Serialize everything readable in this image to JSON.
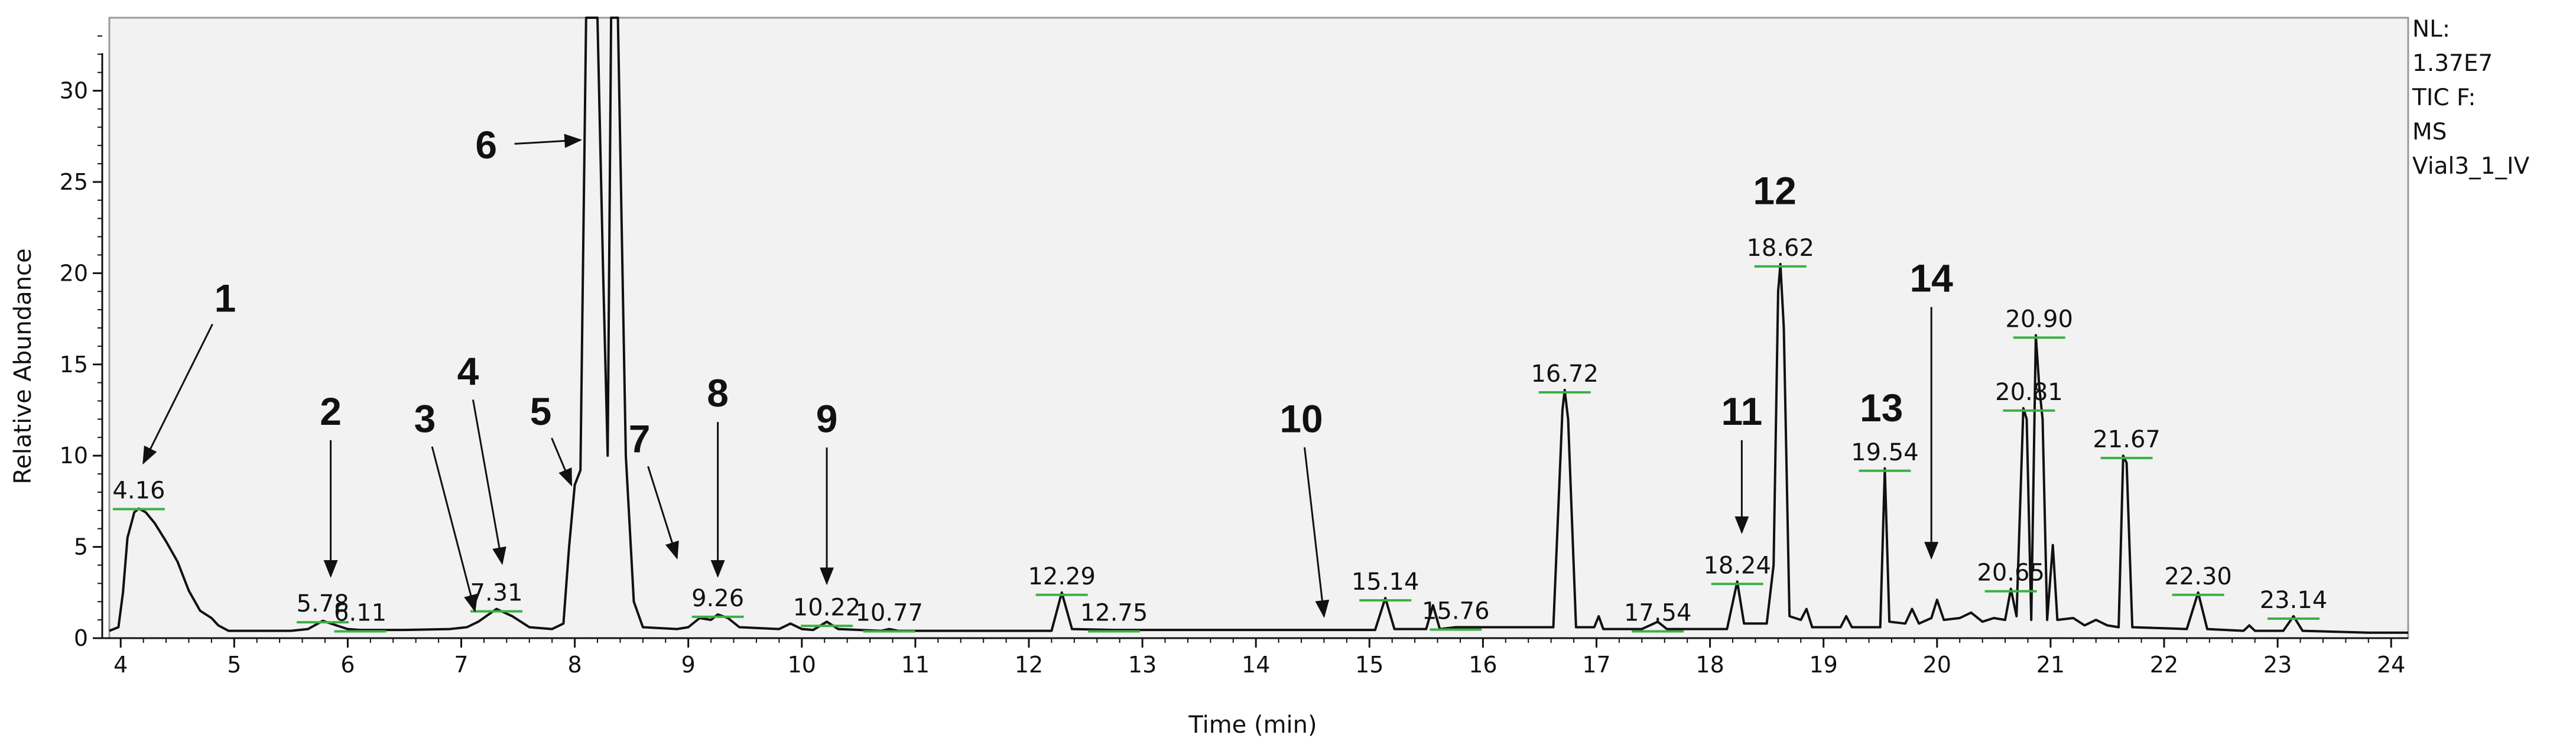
{
  "chart_data": {
    "type": "line",
    "xlabel": "Time (min)",
    "ylabel": "Relative Abundance",
    "xlim": [
      3.9,
      24.15
    ],
    "ylim": [
      0,
      34
    ],
    "x_ticks": [
      4,
      5,
      6,
      7,
      8,
      9,
      10,
      11,
      12,
      13,
      14,
      15,
      16,
      17,
      18,
      19,
      20,
      21,
      22,
      23,
      24
    ],
    "y_ticks": [
      0,
      5,
      10,
      15,
      20,
      25,
      30
    ],
    "info": [
      "NL:",
      "1.37E7",
      "TIC F:",
      "MS",
      "Vial3_1_IV"
    ],
    "peak_labels": [
      {
        "text": "4.16",
        "x": 4.16,
        "y": 7.2
      },
      {
        "text": "5.78",
        "x": 5.78,
        "y": 1.0
      },
      {
        "text": "6.11",
        "x": 6.11,
        "y": 0.5
      },
      {
        "text": "7.31",
        "x": 7.31,
        "y": 1.6
      },
      {
        "text": "9.26",
        "x": 9.26,
        "y": 1.3
      },
      {
        "text": "10.22",
        "x": 10.22,
        "y": 0.8
      },
      {
        "text": "10.77",
        "x": 10.77,
        "y": 0.5
      },
      {
        "text": "12.29",
        "x": 12.29,
        "y": 2.5
      },
      {
        "text": "12.75",
        "x": 12.75,
        "y": 0.5
      },
      {
        "text": "15.14",
        "x": 15.14,
        "y": 2.2
      },
      {
        "text": "15.76",
        "x": 15.76,
        "y": 0.6
      },
      {
        "text": "16.72",
        "x": 16.72,
        "y": 13.6
      },
      {
        "text": "17.54",
        "x": 17.54,
        "y": 0.5
      },
      {
        "text": "18.24",
        "x": 18.24,
        "y": 3.1
      },
      {
        "text": "18.62",
        "x": 18.62,
        "y": 20.5
      },
      {
        "text": "19.54",
        "x": 19.54,
        "y": 9.3
      },
      {
        "text": "20.65",
        "x": 20.65,
        "y": 2.7
      },
      {
        "text": "20.81",
        "x": 20.81,
        "y": 12.6
      },
      {
        "text": "20.90",
        "x": 20.9,
        "y": 16.6
      },
      {
        "text": "21.67",
        "x": 21.67,
        "y": 10.0
      },
      {
        "text": "22.30",
        "x": 22.3,
        "y": 2.5
      },
      {
        "text": "23.14",
        "x": 23.14,
        "y": 1.2
      }
    ],
    "annotations": [
      {
        "text": "1",
        "label_x": 4.92,
        "label_y": 18.6,
        "target_x": 4.2,
        "target_y": 9.6
      },
      {
        "text": "2",
        "label_x": 5.85,
        "label_y": 12.4,
        "target_x": 5.85,
        "target_y": 3.4
      },
      {
        "text": "3",
        "label_x": 6.68,
        "label_y": 12.0,
        "target_x": 7.12,
        "target_y": 1.5
      },
      {
        "text": "4",
        "label_x": 7.06,
        "label_y": 14.6,
        "target_x": 7.36,
        "target_y": 4.1
      },
      {
        "text": "5",
        "label_x": 7.7,
        "label_y": 12.4,
        "target_x": 7.97,
        "target_y": 8.4
      },
      {
        "text": "6",
        "label_x": 7.22,
        "label_y": 27.0,
        "target_x": 8.05,
        "target_y": 27.3
      },
      {
        "text": "7",
        "label_x": 8.57,
        "label_y": 10.9,
        "target_x": 8.9,
        "target_y": 4.4
      },
      {
        "text": "8",
        "label_x": 9.26,
        "label_y": 13.4,
        "target_x": 9.26,
        "target_y": 3.4
      },
      {
        "text": "9",
        "label_x": 10.22,
        "label_y": 12.0,
        "target_x": 10.22,
        "target_y": 3.0
      },
      {
        "text": "10",
        "label_x": 14.4,
        "label_y": 12.0,
        "target_x": 14.6,
        "target_y": 1.2
      },
      {
        "text": "11",
        "label_x": 18.28,
        "label_y": 12.4,
        "target_x": 18.28,
        "target_y": 5.8
      },
      {
        "text": "12",
        "label_x": 18.57,
        "label_y": 24.5,
        "target_x": null,
        "target_y": null
      },
      {
        "text": "13",
        "label_x": 19.51,
        "label_y": 12.6,
        "target_x": null,
        "target_y": null
      },
      {
        "text": "14",
        "label_x": 19.95,
        "label_y": 19.7,
        "target_x": 19.95,
        "target_y": 4.4
      }
    ],
    "series": [
      {
        "values": [
          [
            3.9,
            0.4
          ],
          [
            3.98,
            0.6
          ],
          [
            4.02,
            2.5
          ],
          [
            4.06,
            5.5
          ],
          [
            4.12,
            6.9
          ],
          [
            4.16,
            7.1
          ],
          [
            4.22,
            6.9
          ],
          [
            4.3,
            6.3
          ],
          [
            4.4,
            5.3
          ],
          [
            4.5,
            4.2
          ],
          [
            4.6,
            2.6
          ],
          [
            4.7,
            1.5
          ],
          [
            4.8,
            1.1
          ],
          [
            4.86,
            0.7
          ],
          [
            4.95,
            0.4
          ],
          [
            5.5,
            0.4
          ],
          [
            5.65,
            0.5
          ],
          [
            5.78,
            0.95
          ],
          [
            5.9,
            0.7
          ],
          [
            6.0,
            0.5
          ],
          [
            6.11,
            0.45
          ],
          [
            6.5,
            0.45
          ],
          [
            6.9,
            0.5
          ],
          [
            7.05,
            0.6
          ],
          [
            7.15,
            0.9
          ],
          [
            7.31,
            1.6
          ],
          [
            7.45,
            1.2
          ],
          [
            7.6,
            0.6
          ],
          [
            7.8,
            0.5
          ],
          [
            7.9,
            0.8
          ],
          [
            7.95,
            5.0
          ],
          [
            8.0,
            8.4
          ],
          [
            8.05,
            9.2
          ],
          [
            8.1,
            34.0
          ],
          [
            8.15,
            34.0
          ],
          [
            8.2,
            34.0
          ],
          [
            8.25,
            20.0
          ],
          [
            8.29,
            10.0
          ],
          [
            8.32,
            34.0
          ],
          [
            8.38,
            34.0
          ],
          [
            8.45,
            10.0
          ],
          [
            8.52,
            2.0
          ],
          [
            8.6,
            0.6
          ],
          [
            8.9,
            0.5
          ],
          [
            9.0,
            0.6
          ],
          [
            9.1,
            1.1
          ],
          [
            9.2,
            1.0
          ],
          [
            9.26,
            1.3
          ],
          [
            9.35,
            1.1
          ],
          [
            9.45,
            0.6
          ],
          [
            9.8,
            0.5
          ],
          [
            9.9,
            0.8
          ],
          [
            10.0,
            0.5
          ],
          [
            10.1,
            0.45
          ],
          [
            10.22,
            0.9
          ],
          [
            10.32,
            0.5
          ],
          [
            10.7,
            0.4
          ],
          [
            10.77,
            0.5
          ],
          [
            10.85,
            0.4
          ],
          [
            12.2,
            0.4
          ],
          [
            12.29,
            2.5
          ],
          [
            12.38,
            0.5
          ],
          [
            12.75,
            0.45
          ],
          [
            15.05,
            0.45
          ],
          [
            15.14,
            2.2
          ],
          [
            15.22,
            0.5
          ],
          [
            15.5,
            0.5
          ],
          [
            15.56,
            1.8
          ],
          [
            15.62,
            0.5
          ],
          [
            15.76,
            0.6
          ],
          [
            16.62,
            0.6
          ],
          [
            16.7,
            12.5
          ],
          [
            16.72,
            13.6
          ],
          [
            16.75,
            12.0
          ],
          [
            16.82,
            0.6
          ],
          [
            16.98,
            0.6
          ],
          [
            17.02,
            1.2
          ],
          [
            17.06,
            0.5
          ],
          [
            17.4,
            0.5
          ],
          [
            17.54,
            0.9
          ],
          [
            17.62,
            0.5
          ],
          [
            18.15,
            0.5
          ],
          [
            18.24,
            3.1
          ],
          [
            18.3,
            0.8
          ],
          [
            18.5,
            0.8
          ],
          [
            18.56,
            4.0
          ],
          [
            18.6,
            19.0
          ],
          [
            18.62,
            20.5
          ],
          [
            18.65,
            17.0
          ],
          [
            18.7,
            1.2
          ],
          [
            18.8,
            1.0
          ],
          [
            18.85,
            1.6
          ],
          [
            18.9,
            0.6
          ],
          [
            19.15,
            0.6
          ],
          [
            19.2,
            1.2
          ],
          [
            19.25,
            0.6
          ],
          [
            19.5,
            0.6
          ],
          [
            19.54,
            9.3
          ],
          [
            19.58,
            0.9
          ],
          [
            19.72,
            0.8
          ],
          [
            19.78,
            1.6
          ],
          [
            19.84,
            0.8
          ],
          [
            19.95,
            1.1
          ],
          [
            20.0,
            2.1
          ],
          [
            20.06,
            1.0
          ],
          [
            20.2,
            1.1
          ],
          [
            20.3,
            1.4
          ],
          [
            20.4,
            0.9
          ],
          [
            20.5,
            1.1
          ],
          [
            20.6,
            1.0
          ],
          [
            20.65,
            2.7
          ],
          [
            20.7,
            1.2
          ],
          [
            20.76,
            12.6
          ],
          [
            20.79,
            12.0
          ],
          [
            20.83,
            1.0
          ],
          [
            20.87,
            16.6
          ],
          [
            20.9,
            13.8
          ],
          [
            20.93,
            12.0
          ],
          [
            20.97,
            1.0
          ],
          [
            21.02,
            5.1
          ],
          [
            21.06,
            1.0
          ],
          [
            21.2,
            1.1
          ],
          [
            21.3,
            0.7
          ],
          [
            21.4,
            1.0
          ],
          [
            21.5,
            0.7
          ],
          [
            21.6,
            0.6
          ],
          [
            21.64,
            10.0
          ],
          [
            21.67,
            9.6
          ],
          [
            21.72,
            0.6
          ],
          [
            22.2,
            0.5
          ],
          [
            22.3,
            2.5
          ],
          [
            22.38,
            0.5
          ],
          [
            22.7,
            0.4
          ],
          [
            22.75,
            0.7
          ],
          [
            22.8,
            0.4
          ],
          [
            23.05,
            0.4
          ],
          [
            23.14,
            1.2
          ],
          [
            23.22,
            0.4
          ],
          [
            23.8,
            0.3
          ],
          [
            24.15,
            0.3
          ]
        ]
      }
    ]
  }
}
